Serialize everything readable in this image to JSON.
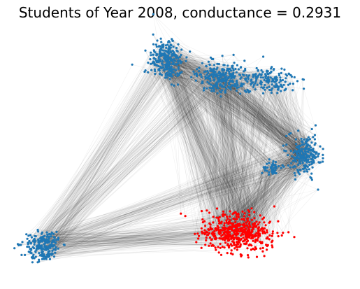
{
  "title": "Students of Year 2008, conductance = 0.2931",
  "colors": {
    "background": "#ffffff",
    "node_default": "#1f77b4",
    "node_highlight": "#ff0000",
    "edge": "#000000"
  },
  "graph": {
    "conductance": 0.2931,
    "clusters": [
      {
        "id": "cluster-a",
        "highlighted": false
      },
      {
        "id": "cluster-b",
        "highlighted": false
      },
      {
        "id": "cluster-c",
        "highlighted": false
      },
      {
        "id": "cluster-d",
        "highlighted": false
      },
      {
        "id": "cluster-e",
        "highlighted": false
      },
      {
        "id": "cluster-f",
        "highlighted": false
      },
      {
        "id": "cluster-g",
        "highlighted": true
      }
    ]
  }
}
